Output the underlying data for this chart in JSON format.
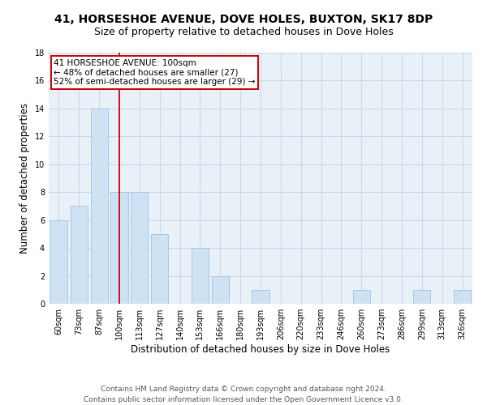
{
  "title": "41, HORSESHOE AVENUE, DOVE HOLES, BUXTON, SK17 8DP",
  "subtitle": "Size of property relative to detached houses in Dove Holes",
  "xlabel": "Distribution of detached houses by size in Dove Holes",
  "ylabel": "Number of detached properties",
  "bar_values": [
    6,
    7,
    14,
    8,
    8,
    5,
    0,
    4,
    2,
    0,
    1,
    0,
    0,
    0,
    0,
    1,
    0,
    0,
    1,
    0,
    1
  ],
  "categories": [
    "60sqm",
    "73sqm",
    "87sqm",
    "100sqm",
    "113sqm",
    "127sqm",
    "140sqm",
    "153sqm",
    "166sqm",
    "180sqm",
    "193sqm",
    "206sqm",
    "220sqm",
    "233sqm",
    "246sqm",
    "260sqm",
    "273sqm",
    "286sqm",
    "299sqm",
    "313sqm",
    "326sqm"
  ],
  "bar_color": "#cfe2f3",
  "bar_edge_color": "#a8c8e8",
  "grid_color": "#d0d8e8",
  "bg_color": "#e8f0f8",
  "vline_x": 3,
  "vline_color": "#cc0000",
  "annotation_line1": "41 HORSESHOE AVENUE: 100sqm",
  "annotation_line2": "← 48% of detached houses are smaller (27)",
  "annotation_line3": "52% of semi-detached houses are larger (29) →",
  "annotation_box_color": "#cc0000",
  "ylim": [
    0,
    18
  ],
  "yticks": [
    0,
    2,
    4,
    6,
    8,
    10,
    12,
    14,
    16,
    18
  ],
  "footer_text": "Contains HM Land Registry data © Crown copyright and database right 2024.\nContains public sector information licensed under the Open Government Licence v3.0.",
  "title_fontsize": 10,
  "subtitle_fontsize": 9,
  "xlabel_fontsize": 8.5,
  "ylabel_fontsize": 8.5,
  "tick_fontsize": 7,
  "annotation_fontsize": 7.5,
  "footer_fontsize": 6.5
}
